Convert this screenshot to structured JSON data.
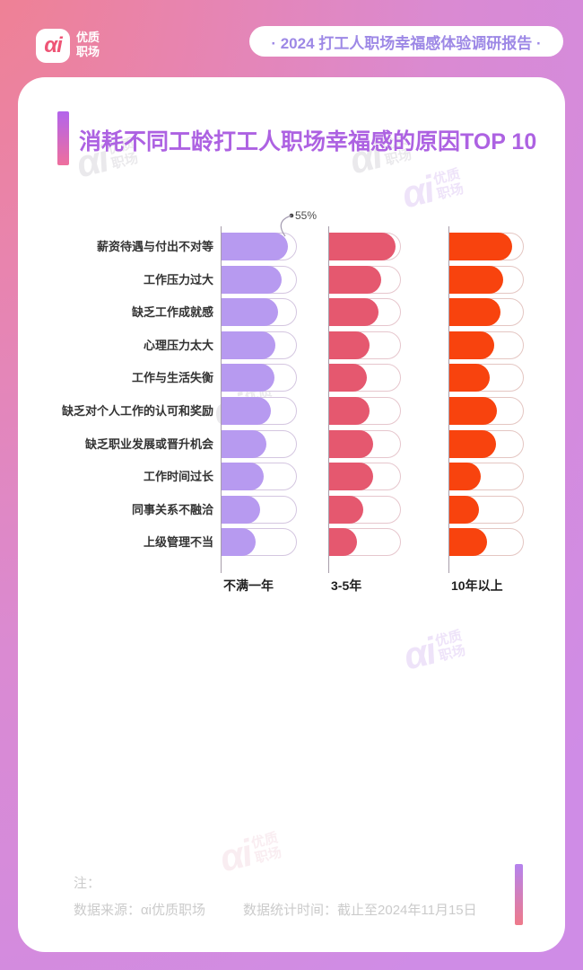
{
  "theme": {
    "bg_from": "#f0808f",
    "bg_to": "#cf8ce6",
    "card": "#ffffff",
    "title_color": "#ad62e2",
    "badge_text_color": "#9d88e6",
    "footer_text_color": "#cbcbcb",
    "label_color": "#333333",
    "accent_from": "#b264ec",
    "accent_to": "#ee6f9d"
  },
  "header": {
    "logo_mark": "αi",
    "logo_name_line1": "优质",
    "logo_name_line2": "职场",
    "badge": "· 2024 打工人职场幸福感体验调研报告 ·"
  },
  "title": "消耗不同工龄打工人职场幸福感的原因TOP 10",
  "chart_data": {
    "type": "bar",
    "orientation": "horizontal",
    "title": "消耗不同工龄打工人职场幸福感的原因TOP 10",
    "categories": [
      "薪资待遇与付出不对等",
      "工作压力过大",
      "缺乏工作成就感",
      "心理压力太大",
      "工作与生活失衡",
      "缺乏对个人工作的认可和奖励",
      "缺乏职业发展或晋升机会",
      "工作时间过长",
      "同事关系不融洽",
      "上级管理不当"
    ],
    "series": [
      {
        "name": "不满一年",
        "color": "#b79af0",
        "track_border": "#d4c6e0",
        "values": [
          55,
          50,
          47,
          45,
          44,
          41,
          37,
          35,
          32,
          28
        ]
      },
      {
        "name": "3-5年",
        "color": "#e5586f",
        "track_border": "#e6c6cd",
        "values": [
          58,
          45,
          43,
          35,
          33,
          35,
          38,
          38,
          30,
          24
        ]
      },
      {
        "name": "10年以上",
        "color": "#f8430e",
        "track_border": "#e4c6c2",
        "values": [
          53,
          45,
          43,
          38,
          34,
          40,
          39,
          26,
          25,
          32
        ]
      }
    ],
    "annotation": {
      "text": "55%",
      "series": "不满一年",
      "category": "薪资待遇与付出不对等"
    },
    "axis_max": 62.5,
    "value_labels_shown": false,
    "grid": false,
    "unit": "%"
  },
  "watermark": {
    "mark": "αi",
    "line1": "优质",
    "line2": "职场"
  },
  "footer": {
    "note_label": "注：",
    "source": "数据来源：αi优质职场",
    "time": "数据统计时间：截止至2024年11月15日"
  }
}
